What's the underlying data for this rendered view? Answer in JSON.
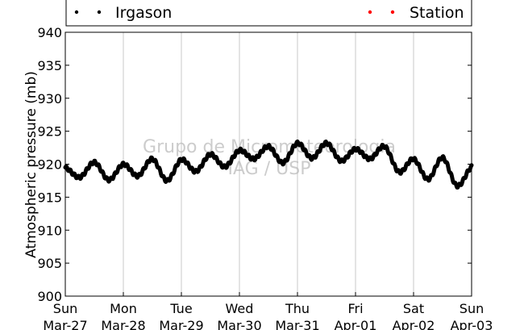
{
  "chart_data": {
    "type": "line",
    "ylabel": "Atmospheric pressure (mb)",
    "xlabel": "",
    "ylim": [
      900,
      940
    ],
    "yticks": [
      900,
      905,
      910,
      915,
      920,
      925,
      930,
      935,
      940
    ],
    "xlim_days": [
      0,
      7
    ],
    "xticks": [
      {
        "day": "Sun",
        "date": "Mar-27"
      },
      {
        "day": "Mon",
        "date": "Mar-28"
      },
      {
        "day": "Tue",
        "date": "Mar-29"
      },
      {
        "day": "Wed",
        "date": "Mar-30"
      },
      {
        "day": "Thu",
        "date": "Mar-31"
      },
      {
        "day": "Fri",
        "date": "Apr-01"
      },
      {
        "day": "Sat",
        "date": "Apr-02"
      },
      {
        "day": "Sun",
        "date": "Apr-03"
      }
    ],
    "grid": "vertical",
    "legend_placement": "top",
    "series": [
      {
        "name": "Irgason",
        "color": "#000000",
        "x": [
          "Mar-27 00:00",
          "Mar-27 06:00",
          "Mar-27 12:00",
          "Mar-27 18:00",
          "Mar-28 00:00",
          "Mar-28 06:00",
          "Mar-28 12:00",
          "Mar-28 18:00",
          "Mar-29 00:00",
          "Mar-29 06:00",
          "Mar-29 12:00",
          "Mar-29 18:00",
          "Mar-30 00:00",
          "Mar-30 06:00",
          "Mar-30 12:00",
          "Mar-30 18:00",
          "Mar-31 00:00",
          "Mar-31 06:00",
          "Mar-31 12:00",
          "Mar-31 18:00",
          "Apr-01 00:00",
          "Apr-01 06:00",
          "Apr-01 12:00",
          "Apr-01 18:00",
          "Apr-02 00:00",
          "Apr-02 06:00",
          "Apr-02 12:00",
          "Apr-02 18:00",
          "Apr-03 00:00"
        ],
        "values": [
          919.5,
          918.0,
          920.3,
          917.6,
          920.0,
          918.2,
          920.8,
          917.5,
          920.7,
          918.9,
          921.5,
          919.6,
          922.1,
          920.8,
          922.7,
          920.2,
          923.2,
          920.9,
          923.2,
          920.5,
          922.3,
          920.8,
          922.7,
          918.8,
          920.8,
          917.7,
          921.0,
          916.7,
          919.6
        ]
      },
      {
        "name": "Station",
        "color": "#ff0000",
        "x": [],
        "values": []
      }
    ]
  },
  "watermark": {
    "line1": "Grupo de Micrometeorologia",
    "line2": "IAG / USP"
  }
}
